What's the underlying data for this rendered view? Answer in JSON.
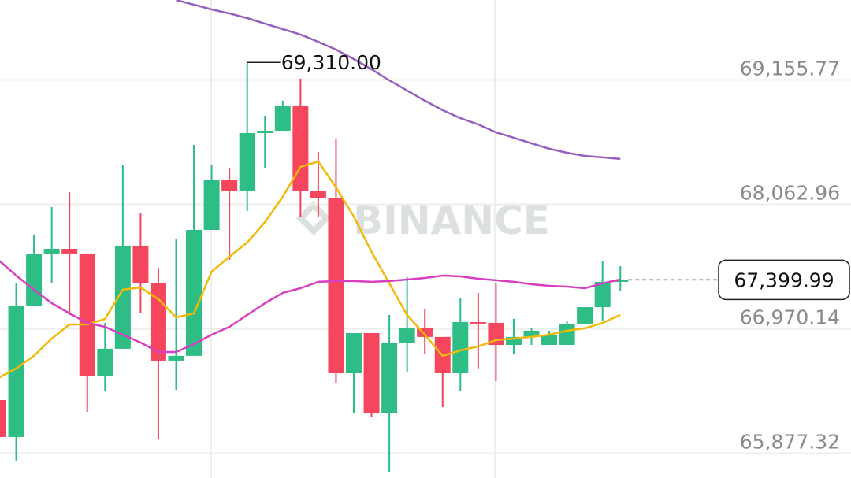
{
  "chart_data": {
    "type": "candlestick",
    "watermark": "BINANCE",
    "up_color": "#2ebd85",
    "down_color": "#f6465d",
    "ylim": [
      65659,
      69858
    ],
    "yticks": [
      {
        "value": 65877.32,
        "label": "65,877.32"
      },
      {
        "value": 66970.14,
        "label": "66,970.14"
      },
      {
        "value": 68062.96,
        "label": "68,062.96"
      },
      {
        "value": 69155.77,
        "label": "69,155.77"
      }
    ],
    "grid": true,
    "last_price": {
      "value": 67399.99,
      "label": "67,399.99"
    },
    "max_annotation": {
      "value": 69310,
      "label": "69,310.00"
    },
    "series": {
      "open": [
        66344,
        66019,
        67174,
        67631,
        67672,
        67631,
        66552,
        66794,
        67700,
        67368,
        66690,
        66732,
        67838,
        68281,
        68177,
        68689,
        68710,
        68924,
        68177,
        68115,
        66579,
        66932,
        66227,
        66849,
        66974,
        66898,
        66579,
        67029,
        67022,
        66828,
        66898,
        66828,
        66828,
        67015,
        67160,
        67382
      ],
      "high": [
        66380,
        67368,
        67797,
        68039,
        68170,
        67631,
        67022,
        68405,
        67990,
        67506,
        67762,
        68585,
        68405,
        68385,
        69310,
        68841,
        68973,
        69166,
        68523,
        68641,
        66932,
        66932,
        67091,
        67423,
        67147,
        66898,
        67243,
        67285,
        67368,
        67057,
        66974,
        66953,
        67036,
        67160,
        67562,
        67520
      ],
      "low": [
        65980,
        65812,
        67174,
        67368,
        67091,
        66240,
        66420,
        66794,
        67112,
        66005,
        66434,
        66732,
        67838,
        67575,
        68004,
        68385,
        68710,
        67956,
        67956,
        66496,
        66227,
        66192,
        65708,
        66593,
        66745,
        66282,
        66420,
        66621,
        66510,
        66745,
        66828,
        66828,
        66828,
        67008,
        67036,
        67299
      ],
      "close": [
        66019,
        67174,
        67624,
        67672,
        67631,
        66552,
        66794,
        67700,
        67368,
        66690,
        66732,
        67838,
        68281,
        68177,
        68689,
        68710,
        68924,
        68177,
        68115,
        66579,
        66932,
        66227,
        66849,
        66974,
        66898,
        66579,
        67029,
        67022,
        66828,
        66898,
        66953,
        66918,
        67015,
        67160,
        67382,
        67399.99
      ]
    },
    "lines": [
      {
        "color": "#f0b90b",
        "values": [
          66538,
          66621,
          66732,
          66884,
          67008,
          67008,
          67057,
          67313,
          67333,
          67230,
          67070,
          67105,
          67472,
          67603,
          67728,
          67907,
          68129,
          68392,
          68440,
          68212,
          67956,
          67645,
          67368,
          67091,
          66918,
          66732,
          66780,
          66815,
          66870,
          66884,
          66898,
          66918,
          66953,
          66974,
          67022,
          67091
        ]
      },
      {
        "color": "#d63fbf",
        "values": [
          67575,
          67437,
          67313,
          67195,
          67105,
          67022,
          66987,
          66918,
          66849,
          66766,
          66766,
          66835,
          66918,
          66987,
          67091,
          67195,
          67285,
          67326,
          67382,
          67389,
          67389,
          67382,
          67389,
          67402,
          67416,
          67437,
          67430,
          67409,
          67396,
          67382,
          67361,
          67347,
          67340,
          67326,
          67368,
          67403
        ]
      },
      {
        "color": "#9660c0",
        "values": [
          null,
          null,
          null,
          null,
          null,
          null,
          null,
          null,
          null,
          null,
          69858,
          69817,
          69775,
          69740,
          69699,
          69650,
          69602,
          69554,
          69491,
          69422,
          69339,
          69249,
          69152,
          69063,
          68973,
          68890,
          68820,
          68765,
          68696,
          68648,
          68599,
          68551,
          68516,
          68488,
          68475,
          68461
        ]
      }
    ]
  }
}
